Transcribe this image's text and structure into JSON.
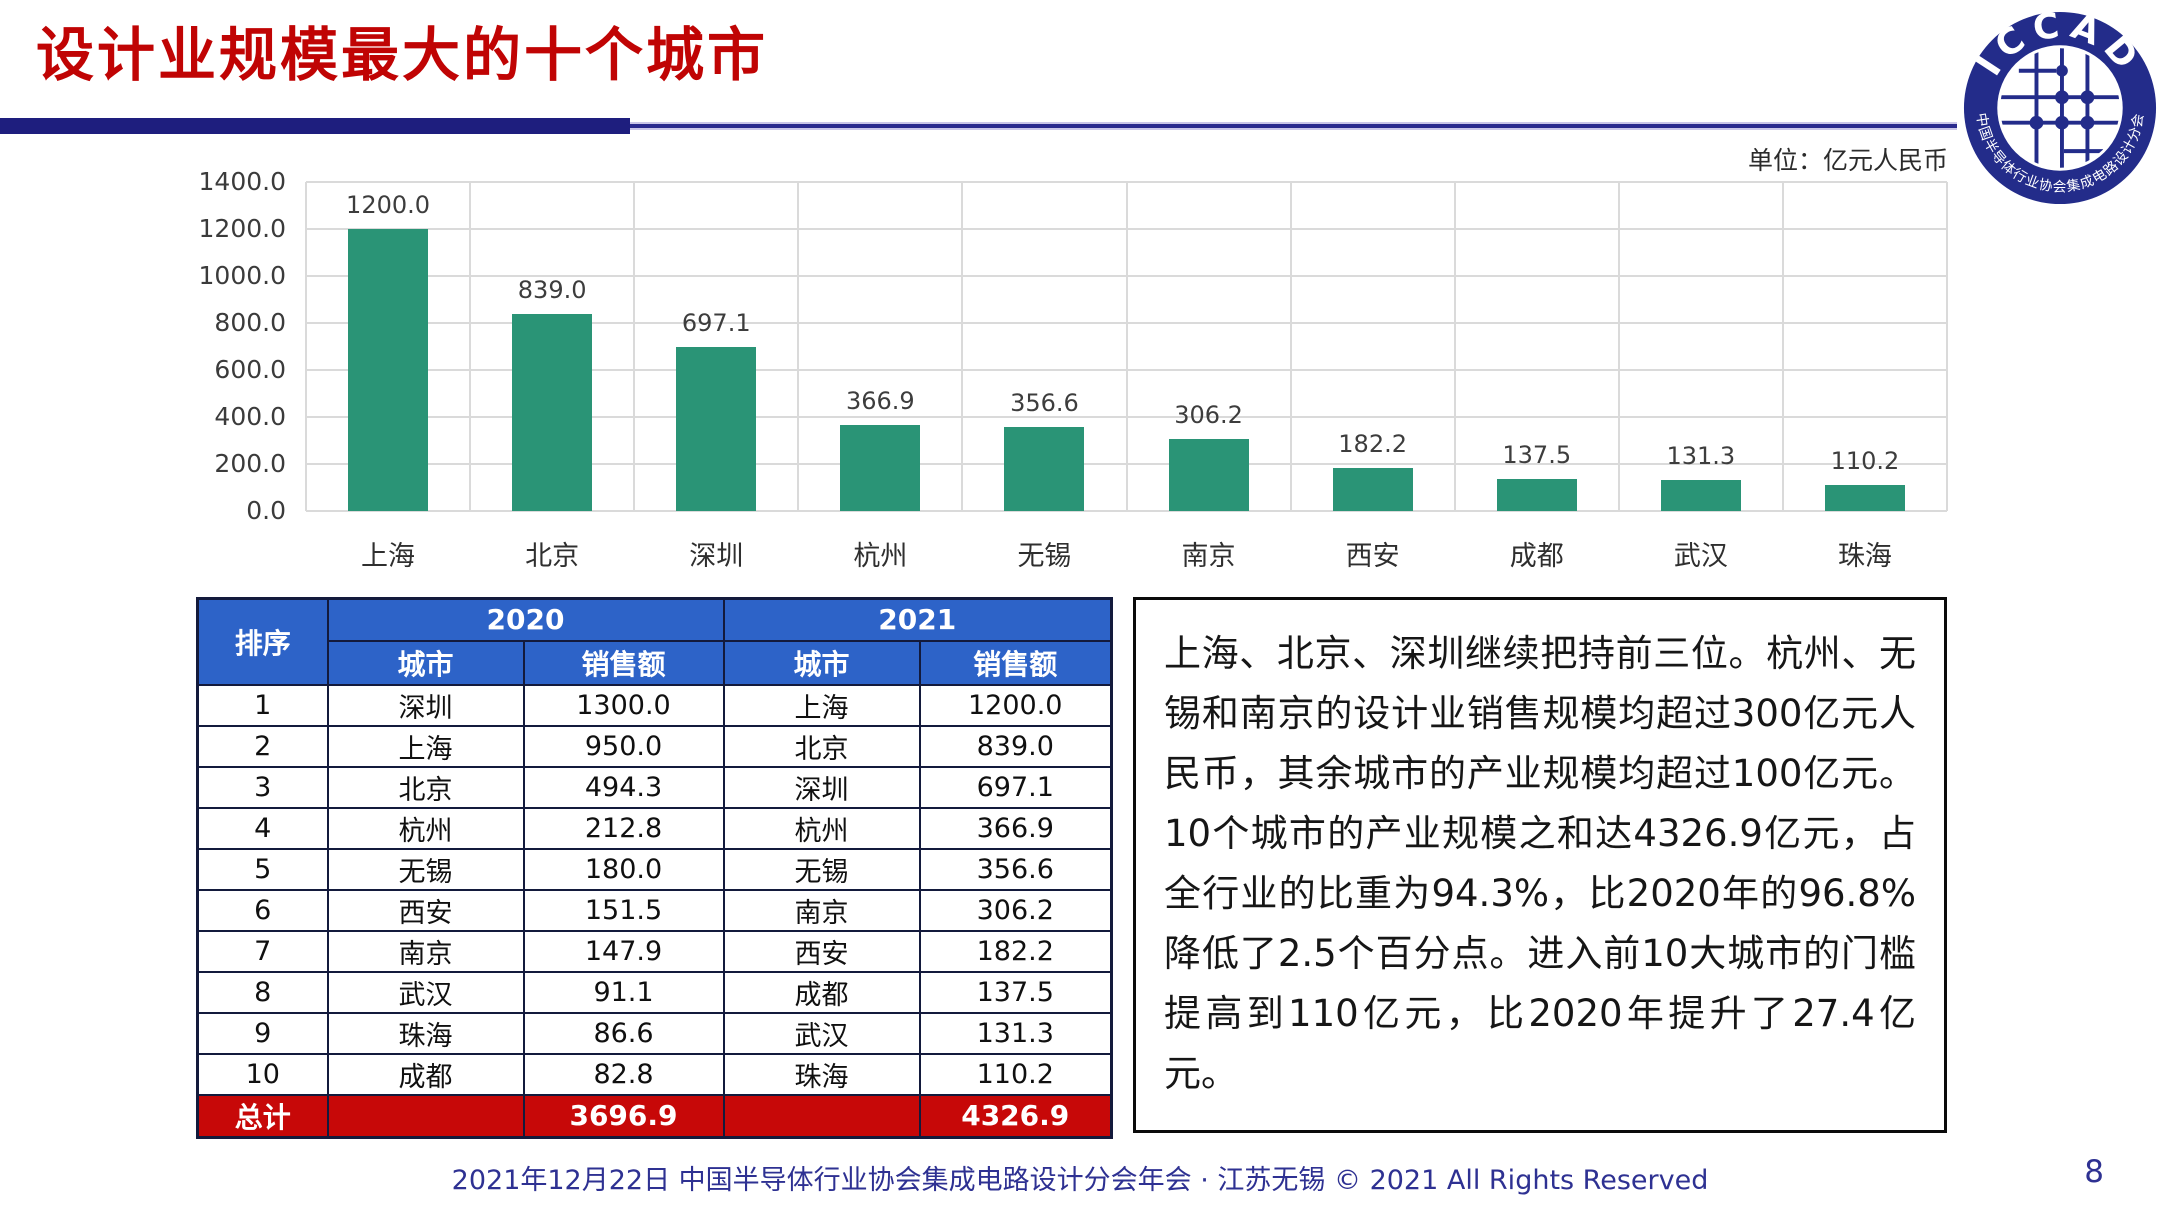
{
  "slide": {
    "title": "设计业规模最大的十个城市",
    "unit_label": "单位：亿元人民币",
    "footer": "2021年12月22日 中国半导体行业协会集成电路设计分会年会 · 江苏无锡 © 2021 All Rights Reserved",
    "page_number": "8"
  },
  "logo": {
    "top_text": "ICCAD",
    "bottom_text": "中国半导体行业协会集成电路设计分会"
  },
  "chart_data": {
    "type": "bar",
    "title": "",
    "xlabel": "",
    "ylabel": "",
    "unit": "亿元人民币",
    "categories": [
      "上海",
      "北京",
      "深圳",
      "杭州",
      "无锡",
      "南京",
      "西安",
      "成都",
      "武汉",
      "珠海"
    ],
    "values": [
      1200.0,
      839.0,
      697.1,
      366.9,
      356.6,
      306.2,
      182.2,
      137.5,
      131.3,
      110.2
    ],
    "value_labels": [
      "1200.0",
      "839.0",
      "697.1",
      "366.9",
      "356.6",
      "306.2",
      "182.2",
      "137.5",
      "131.3",
      "110.2"
    ],
    "ylim": [
      0,
      1400
    ],
    "ytick_labels": [
      "1400.0",
      "1200.0",
      "1000.0",
      "800.0",
      "600.0",
      "400.0",
      "200.0",
      "0.0"
    ],
    "grid": true,
    "legend": "none",
    "bar_color": "#2A9476"
  },
  "table": {
    "rank_header": "排序",
    "year_headers": [
      "2020",
      "2021"
    ],
    "sub_headers": [
      "城市",
      "销售额"
    ],
    "rows": [
      {
        "rank": "1",
        "city_2020": "深圳",
        "sales_2020": "1300.0",
        "city_2021": "上海",
        "sales_2021": "1200.0"
      },
      {
        "rank": "2",
        "city_2020": "上海",
        "sales_2020": "950.0",
        "city_2021": "北京",
        "sales_2021": "839.0"
      },
      {
        "rank": "3",
        "city_2020": "北京",
        "sales_2020": "494.3",
        "city_2021": "深圳",
        "sales_2021": "697.1"
      },
      {
        "rank": "4",
        "city_2020": "杭州",
        "sales_2020": "212.8",
        "city_2021": "杭州",
        "sales_2021": "366.9"
      },
      {
        "rank": "5",
        "city_2020": "无锡",
        "sales_2020": "180.0",
        "city_2021": "无锡",
        "sales_2021": "356.6"
      },
      {
        "rank": "6",
        "city_2020": "西安",
        "sales_2020": "151.5",
        "city_2021": "南京",
        "sales_2021": "306.2"
      },
      {
        "rank": "7",
        "city_2020": "南京",
        "sales_2020": "147.9",
        "city_2021": "西安",
        "sales_2021": "182.2"
      },
      {
        "rank": "8",
        "city_2020": "武汉",
        "sales_2020": "91.1",
        "city_2021": "成都",
        "sales_2021": "137.5"
      },
      {
        "rank": "9",
        "city_2020": "珠海",
        "sales_2020": "86.6",
        "city_2021": "武汉",
        "sales_2021": "131.3"
      },
      {
        "rank": "10",
        "city_2020": "成都",
        "sales_2020": "82.8",
        "city_2021": "珠海",
        "sales_2021": "110.2"
      }
    ],
    "total_label": "总计",
    "total_2020": "3696.9",
    "total_2021": "4326.9"
  },
  "commentary": {
    "text": "上海、北京、深圳继续把持前三位。杭州、无锡和南京的设计业销售规模均超过300亿元人民币，其余城市的产业规模均超过100亿元。10个城市的产业规模之和达4326.9亿元，占全行业的比重为94.3%，比2020年的96.8%降低了2.5个百分点。进入前10大城市的门槛提高到110亿元，比2020年提升了27.4亿元。"
  },
  "colors": {
    "title_red": "#C00404",
    "rule_navy": "#1E1E7E",
    "bar_teal": "#2A9476",
    "table_header_blue": "#2D63C8",
    "total_row_red": "#C70808",
    "footer_navy": "#2E3192",
    "gridline_gray": "#DADADA"
  }
}
